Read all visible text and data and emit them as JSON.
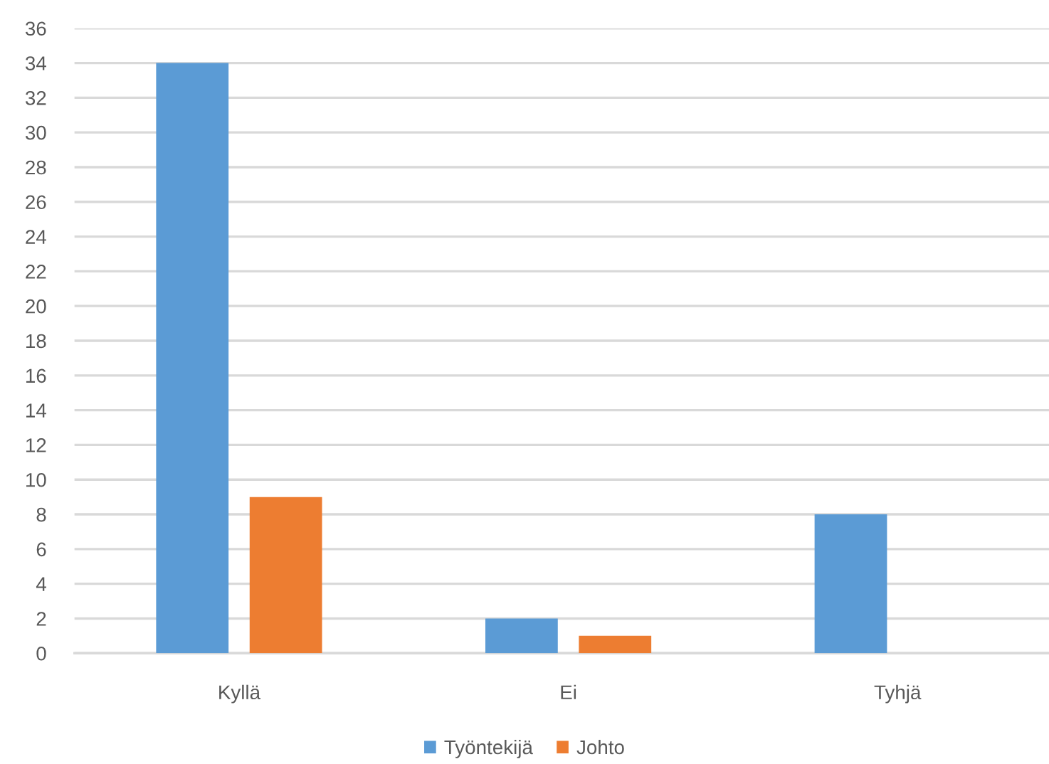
{
  "chart_data": {
    "type": "bar",
    "categories": [
      "Kyllä",
      "Ei",
      "Tyhjä"
    ],
    "series": [
      {
        "name": "Työntekijä",
        "color": "#5b9bd5",
        "values": [
          34,
          2,
          8
        ]
      },
      {
        "name": "Johto",
        "color": "#ed7d31",
        "values": [
          9,
          1,
          null
        ]
      }
    ],
    "ylim": [
      0,
      36
    ],
    "yticks": [
      0,
      2,
      4,
      6,
      8,
      10,
      12,
      14,
      16,
      18,
      20,
      22,
      24,
      26,
      28,
      30,
      32,
      34,
      36
    ],
    "grid": "y",
    "legend": "bottom"
  }
}
